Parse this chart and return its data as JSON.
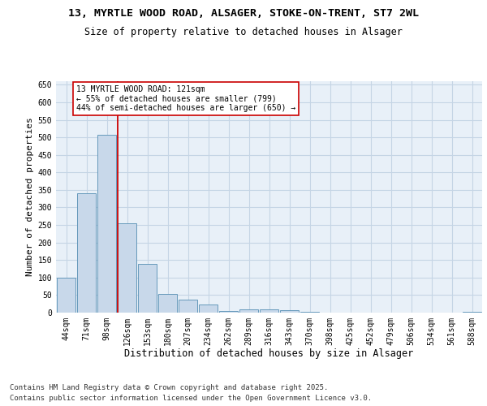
{
  "title1": "13, MYRTLE WOOD ROAD, ALSAGER, STOKE-ON-TRENT, ST7 2WL",
  "title2": "Size of property relative to detached houses in Alsager",
  "xlabel": "Distribution of detached houses by size in Alsager",
  "ylabel": "Number of detached properties",
  "categories": [
    "44sqm",
    "71sqm",
    "98sqm",
    "126sqm",
    "153sqm",
    "180sqm",
    "207sqm",
    "234sqm",
    "262sqm",
    "289sqm",
    "316sqm",
    "343sqm",
    "370sqm",
    "398sqm",
    "425sqm",
    "452sqm",
    "479sqm",
    "506sqm",
    "534sqm",
    "561sqm",
    "588sqm"
  ],
  "values": [
    100,
    340,
    507,
    255,
    140,
    53,
    37,
    24,
    5,
    10,
    10,
    7,
    2,
    0,
    0,
    0,
    0,
    0,
    0,
    0,
    3
  ],
  "bar_color": "#c8d8ea",
  "bar_edge_color": "#6699bb",
  "grid_color": "#c5d5e5",
  "bg_color": "#e8f0f8",
  "annotation_line1": "13 MYRTLE WOOD ROAD: 121sqm",
  "annotation_line2": "← 55% of detached houses are smaller (799)",
  "annotation_line3": "44% of semi-detached houses are larger (650) →",
  "vline_bar_idx": 3,
  "vline_color": "#cc0000",
  "footer": "Contains HM Land Registry data © Crown copyright and database right 2025.\nContains public sector information licensed under the Open Government Licence v3.0.",
  "ylim_max": 660,
  "yticks": [
    0,
    50,
    100,
    150,
    200,
    250,
    300,
    350,
    400,
    450,
    500,
    550,
    600,
    650
  ],
  "title1_fontsize": 9.5,
  "title2_fontsize": 8.5,
  "tick_fontsize": 7,
  "ylabel_fontsize": 8,
  "xlabel_fontsize": 8.5,
  "footer_fontsize": 6.5,
  "annot_fontsize": 7
}
